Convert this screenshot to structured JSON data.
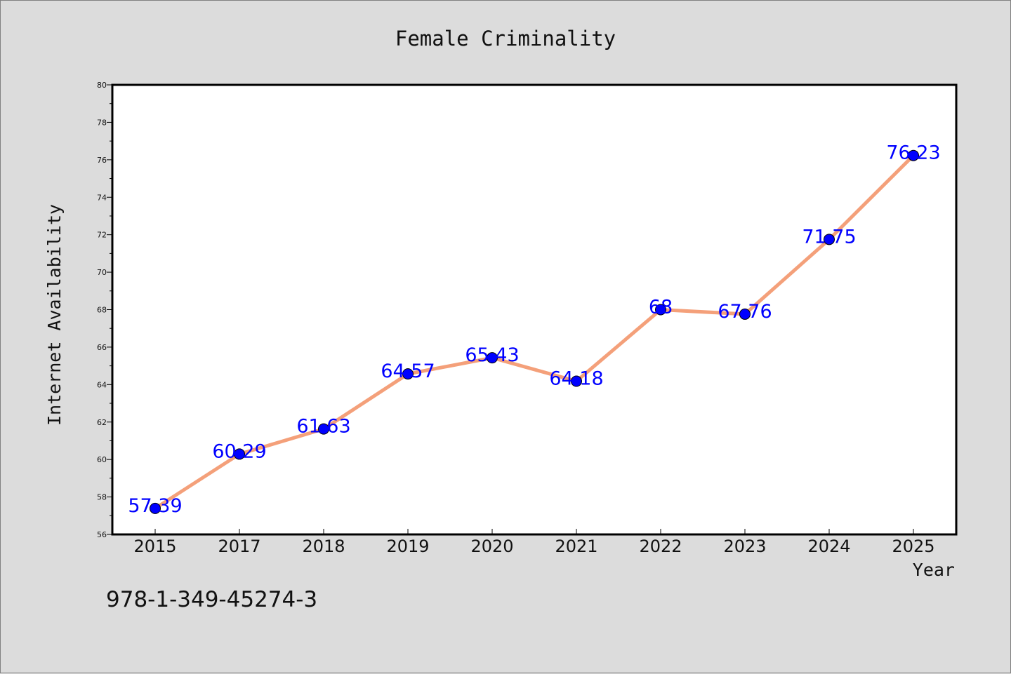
{
  "chart_data": {
    "type": "line",
    "title": "Female Criminality",
    "xlabel": "Year",
    "ylabel": "Internet Availability",
    "categories": [
      "2015",
      "2017",
      "2018",
      "2019",
      "2020",
      "2021",
      "2022",
      "2023",
      "2024",
      "2025"
    ],
    "series": [
      {
        "values": [
          57.39,
          60.29,
          61.63,
          64.57,
          65.43,
          64.18,
          68,
          67.76,
          71.75,
          76.23
        ],
        "labels": [
          "57.39",
          "60.29",
          "61.63",
          "64.57",
          "65.43",
          "64.18",
          "68",
          "67.76",
          "71.75",
          "76.23"
        ],
        "line_color": "#f4a07a",
        "marker_color": "#0000ff",
        "label_color": "#0000ff"
      }
    ],
    "ylim": [
      56,
      80
    ],
    "yticks": [
      "56",
      "58",
      "60",
      "62",
      "64",
      "66",
      "68",
      "70",
      "72",
      "74",
      "76",
      "78",
      "80"
    ],
    "grid": false,
    "legend": "none"
  },
  "footer_text": "978-1-349-45274-3",
  "colors": {
    "background": "#dcdcdc",
    "plot_background": "#ffffff",
    "axis": "#000000"
  }
}
